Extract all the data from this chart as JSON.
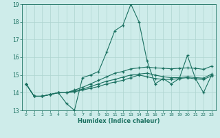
{
  "xlabel": "Humidex (Indice chaleur)",
  "bg_color": "#ceecea",
  "grid_color": "#aed4d0",
  "line_color": "#1a7060",
  "xlim": [
    -0.5,
    23.5
  ],
  "ylim": [
    13,
    19
  ],
  "yticks": [
    13,
    14,
    15,
    16,
    17,
    18,
    19
  ],
  "xticks": [
    0,
    1,
    2,
    3,
    4,
    5,
    6,
    7,
    8,
    9,
    10,
    11,
    12,
    13,
    14,
    15,
    16,
    17,
    18,
    19,
    20,
    21,
    22,
    23
  ],
  "series": [
    [
      14.5,
      13.8,
      13.8,
      13.9,
      14.0,
      13.4,
      13.0,
      14.85,
      15.0,
      15.2,
      16.3,
      17.5,
      17.8,
      19.0,
      18.0,
      15.8,
      14.5,
      14.8,
      14.5,
      14.8,
      16.1,
      14.8,
      14.0,
      15.0
    ],
    [
      14.5,
      13.8,
      13.8,
      13.9,
      14.0,
      14.0,
      14.05,
      14.15,
      14.25,
      14.35,
      14.5,
      14.6,
      14.7,
      14.85,
      15.0,
      14.9,
      14.8,
      14.75,
      14.75,
      14.8,
      14.85,
      14.78,
      14.75,
      14.95
    ],
    [
      14.5,
      13.8,
      13.8,
      13.9,
      14.0,
      14.0,
      14.1,
      14.2,
      14.35,
      14.5,
      14.65,
      14.75,
      14.88,
      15.0,
      15.05,
      15.1,
      15.0,
      14.9,
      14.85,
      14.85,
      14.9,
      14.85,
      14.82,
      15.05
    ],
    [
      14.5,
      13.8,
      13.8,
      13.9,
      14.0,
      14.0,
      14.15,
      14.3,
      14.5,
      14.7,
      14.9,
      15.1,
      15.2,
      15.35,
      15.4,
      15.45,
      15.4,
      15.38,
      15.35,
      15.38,
      15.4,
      15.38,
      15.32,
      15.5
    ]
  ]
}
